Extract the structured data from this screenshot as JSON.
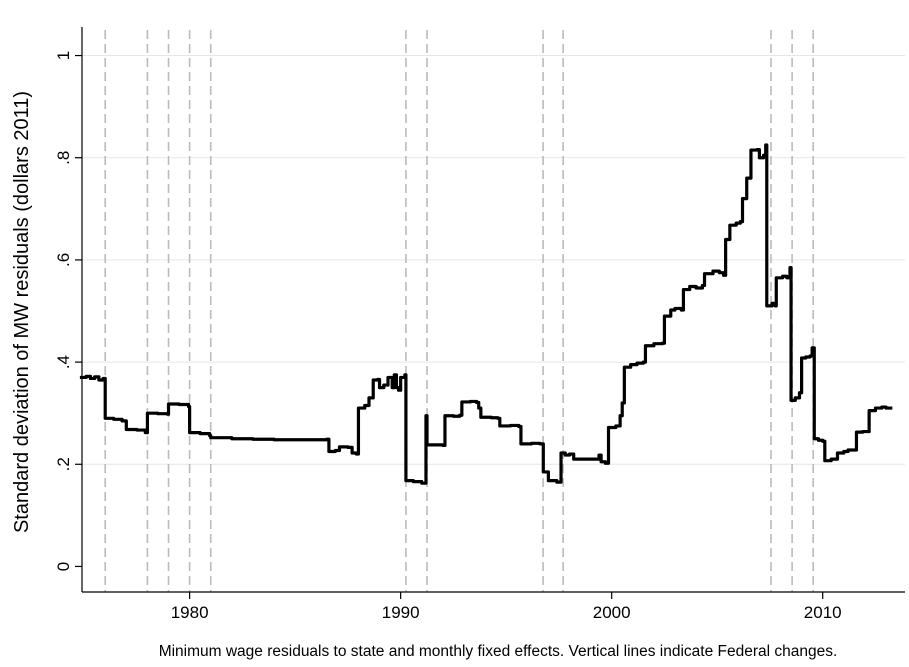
{
  "chart_data": {
    "type": "line",
    "title": "",
    "xlabel": "",
    "ylabel": "Standard deviation of MW residuals (dollars 2011)",
    "note": "Minimum wage residuals to state and monthly fixed effects. Vertical lines indicate Federal changes.",
    "xlim": [
      1974.9,
      2013.9
    ],
    "ylim": [
      -0.05,
      1.05
    ],
    "x_ticks": [
      1980,
      1990,
      2000,
      2010
    ],
    "x_tick_labels": [
      "1980",
      "1990",
      "2000",
      "2010"
    ],
    "y_ticks": [
      0,
      0.2,
      0.4,
      0.6,
      0.8,
      1
    ],
    "y_tick_labels": [
      "0",
      ".2",
      ".4",
      ".6",
      ".8",
      "1"
    ],
    "grid": true,
    "line_color": "#000000",
    "vline_color": "#bbbbbb",
    "federal_changes": [
      1976.0,
      1978.0,
      1979.0,
      1980.0,
      1981.0,
      1990.25,
      1991.25,
      1996.75,
      1997.7,
      2007.55,
      2008.55,
      2009.55
    ],
    "series": [
      {
        "points": [
          [
            1974.8,
            0.37
          ],
          [
            1975.1,
            0.372
          ],
          [
            1975.3,
            0.368
          ],
          [
            1975.5,
            0.371
          ],
          [
            1975.7,
            0.365
          ],
          [
            1975.9,
            0.368
          ],
          [
            1976.0,
            0.29
          ],
          [
            1976.4,
            0.288
          ],
          [
            1976.8,
            0.285
          ],
          [
            1977.0,
            0.268
          ],
          [
            1977.5,
            0.267
          ],
          [
            1977.9,
            0.262
          ],
          [
            1978.0,
            0.3
          ],
          [
            1978.5,
            0.299
          ],
          [
            1978.95,
            0.298
          ],
          [
            1979.0,
            0.318
          ],
          [
            1979.5,
            0.317
          ],
          [
            1979.95,
            0.313
          ],
          [
            1980.0,
            0.262
          ],
          [
            1980.5,
            0.26
          ],
          [
            1980.95,
            0.256
          ],
          [
            1981.0,
            0.252
          ],
          [
            1982.0,
            0.25
          ],
          [
            1983.0,
            0.249
          ],
          [
            1984.0,
            0.248
          ],
          [
            1985.0,
            0.248
          ],
          [
            1986.0,
            0.248
          ],
          [
            1986.5,
            0.249
          ],
          [
            1986.6,
            0.225
          ],
          [
            1986.9,
            0.227
          ],
          [
            1987.1,
            0.234
          ],
          [
            1987.5,
            0.233
          ],
          [
            1987.7,
            0.222
          ],
          [
            1987.9,
            0.22
          ],
          [
            1988.0,
            0.31
          ],
          [
            1988.3,
            0.315
          ],
          [
            1988.5,
            0.33
          ],
          [
            1988.7,
            0.365
          ],
          [
            1988.9,
            0.366
          ],
          [
            1989.0,
            0.35
          ],
          [
            1989.2,
            0.355
          ],
          [
            1989.4,
            0.37
          ],
          [
            1989.6,
            0.35
          ],
          [
            1989.7,
            0.375
          ],
          [
            1989.8,
            0.35
          ],
          [
            1989.9,
            0.345
          ],
          [
            1990.0,
            0.37
          ],
          [
            1990.2,
            0.375
          ],
          [
            1990.25,
            0.168
          ],
          [
            1990.6,
            0.166
          ],
          [
            1991.0,
            0.163
          ],
          [
            1991.2,
            0.295
          ],
          [
            1991.25,
            0.238
          ],
          [
            1991.6,
            0.238
          ],
          [
            1992.0,
            0.237
          ],
          [
            1992.1,
            0.295
          ],
          [
            1992.5,
            0.294
          ],
          [
            1992.8,
            0.296
          ],
          [
            1992.9,
            0.322
          ],
          [
            1993.3,
            0.323
          ],
          [
            1993.6,
            0.321
          ],
          [
            1993.7,
            0.31
          ],
          [
            1993.8,
            0.292
          ],
          [
            1994.3,
            0.291
          ],
          [
            1994.6,
            0.29
          ],
          [
            1994.7,
            0.275
          ],
          [
            1995.2,
            0.276
          ],
          [
            1995.6,
            0.274
          ],
          [
            1995.7,
            0.24
          ],
          [
            1996.2,
            0.241
          ],
          [
            1996.6,
            0.24
          ],
          [
            1996.75,
            0.24
          ],
          [
            1996.76,
            0.185
          ],
          [
            1997.0,
            0.168
          ],
          [
            1997.4,
            0.165
          ],
          [
            1997.6,
            0.222
          ],
          [
            1997.8,
            0.218
          ],
          [
            1998.0,
            0.22
          ],
          [
            1998.2,
            0.21
          ],
          [
            1998.8,
            0.21
          ],
          [
            1999.2,
            0.21
          ],
          [
            1999.4,
            0.218
          ],
          [
            1999.5,
            0.205
          ],
          [
            1999.7,
            0.202
          ],
          [
            1999.85,
            0.272
          ],
          [
            2000.2,
            0.275
          ],
          [
            2000.4,
            0.295
          ],
          [
            2000.5,
            0.32
          ],
          [
            2000.6,
            0.39
          ],
          [
            2000.9,
            0.395
          ],
          [
            2001.2,
            0.398
          ],
          [
            2001.5,
            0.4
          ],
          [
            2001.6,
            0.432
          ],
          [
            2002.0,
            0.436
          ],
          [
            2002.4,
            0.437
          ],
          [
            2002.5,
            0.49
          ],
          [
            2002.8,
            0.502
          ],
          [
            2003.0,
            0.505
          ],
          [
            2003.3,
            0.502
          ],
          [
            2003.4,
            0.542
          ],
          [
            2003.7,
            0.548
          ],
          [
            2004.0,
            0.545
          ],
          [
            2004.3,
            0.55
          ],
          [
            2004.4,
            0.573
          ],
          [
            2004.8,
            0.578
          ],
          [
            2005.1,
            0.575
          ],
          [
            2005.3,
            0.57
          ],
          [
            2005.4,
            0.64
          ],
          [
            2005.6,
            0.668
          ],
          [
            2005.9,
            0.672
          ],
          [
            2006.1,
            0.675
          ],
          [
            2006.2,
            0.72
          ],
          [
            2006.4,
            0.76
          ],
          [
            2006.6,
            0.815
          ],
          [
            2006.9,
            0.816
          ],
          [
            2007.0,
            0.8
          ],
          [
            2007.2,
            0.805
          ],
          [
            2007.3,
            0.825
          ],
          [
            2007.35,
            0.51
          ],
          [
            2007.6,
            0.515
          ],
          [
            2007.75,
            0.51
          ],
          [
            2007.8,
            0.565
          ],
          [
            2008.1,
            0.568
          ],
          [
            2008.3,
            0.565
          ],
          [
            2008.45,
            0.585
          ],
          [
            2008.5,
            0.325
          ],
          [
            2008.7,
            0.33
          ],
          [
            2008.9,
            0.34
          ],
          [
            2009.0,
            0.408
          ],
          [
            2009.2,
            0.41
          ],
          [
            2009.4,
            0.412
          ],
          [
            2009.5,
            0.428
          ],
          [
            2009.6,
            0.25
          ],
          [
            2009.8,
            0.247
          ],
          [
            2010.0,
            0.245
          ],
          [
            2010.1,
            0.207
          ],
          [
            2010.4,
            0.21
          ],
          [
            2010.6,
            0.21
          ],
          [
            2010.7,
            0.222
          ],
          [
            2011.0,
            0.225
          ],
          [
            2011.2,
            0.228
          ],
          [
            2011.5,
            0.228
          ],
          [
            2011.6,
            0.263
          ],
          [
            2011.9,
            0.264
          ],
          [
            2012.1,
            0.264
          ],
          [
            2012.2,
            0.305
          ],
          [
            2012.5,
            0.31
          ],
          [
            2012.8,
            0.312
          ],
          [
            2013.0,
            0.31
          ],
          [
            2013.3,
            0.31
          ]
        ]
      }
    ]
  }
}
